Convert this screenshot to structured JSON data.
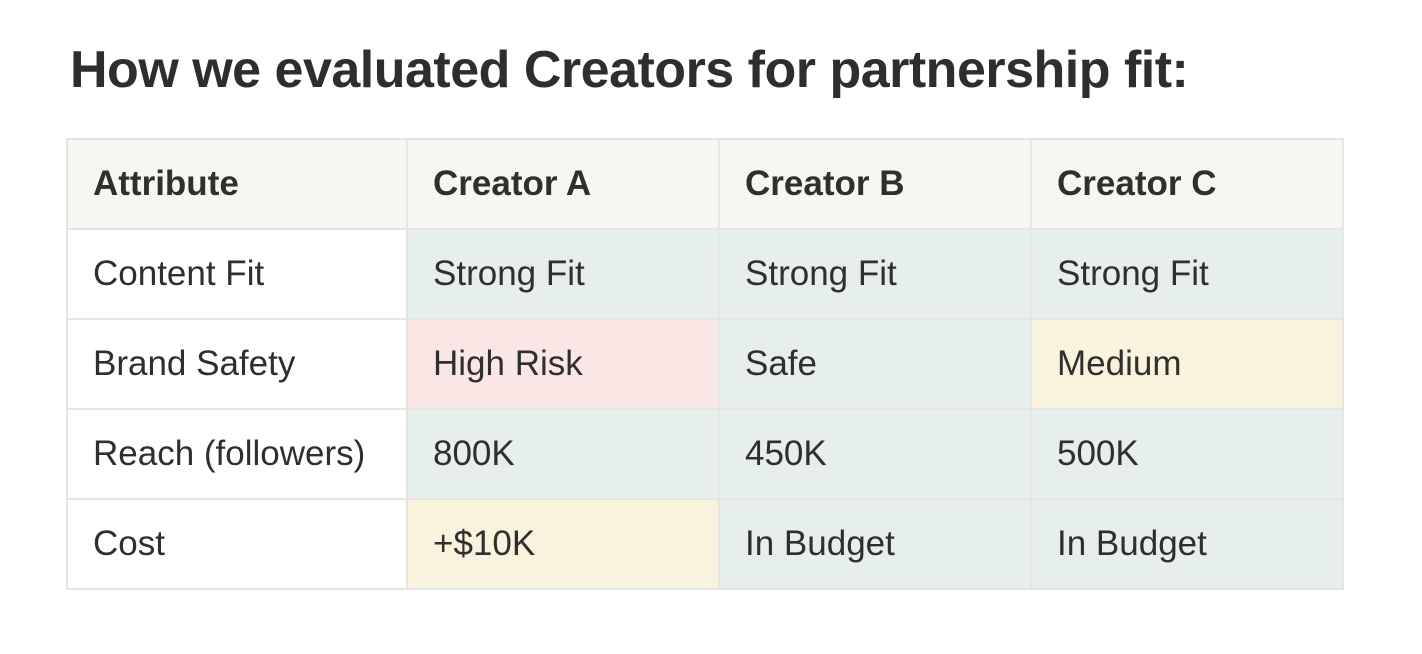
{
  "title": "How we evaluated Creators for partnership fit:",
  "table": {
    "headers": [
      "Attribute",
      "Creator A",
      "Creator B",
      "Creator C"
    ],
    "rows": [
      {
        "cells": [
          "Content Fit",
          "Strong Fit",
          "Strong Fit",
          "Strong Fit"
        ],
        "tones": [
          "white",
          "green",
          "green",
          "green"
        ]
      },
      {
        "cells": [
          "Brand Safety",
          "High Risk",
          "Safe",
          "Medium"
        ],
        "tones": [
          "white",
          "red",
          "green",
          "yellow"
        ]
      },
      {
        "cells": [
          "Reach (followers)",
          "800K",
          "450K",
          "500K"
        ],
        "tones": [
          "white",
          "green",
          "green",
          "green"
        ]
      },
      {
        "cells": [
          "Cost",
          "+$10K",
          "In Budget",
          "In Budget"
        ],
        "tones": [
          "white",
          "yellow",
          "green",
          "green"
        ]
      }
    ]
  },
  "colors": {
    "header_bg": "#f7f6f3",
    "green": "#e6efea",
    "red": "#fbe6e6",
    "yellow": "#f9f3dd",
    "border": "#e5e5e3",
    "text": "#2f2f2d"
  }
}
